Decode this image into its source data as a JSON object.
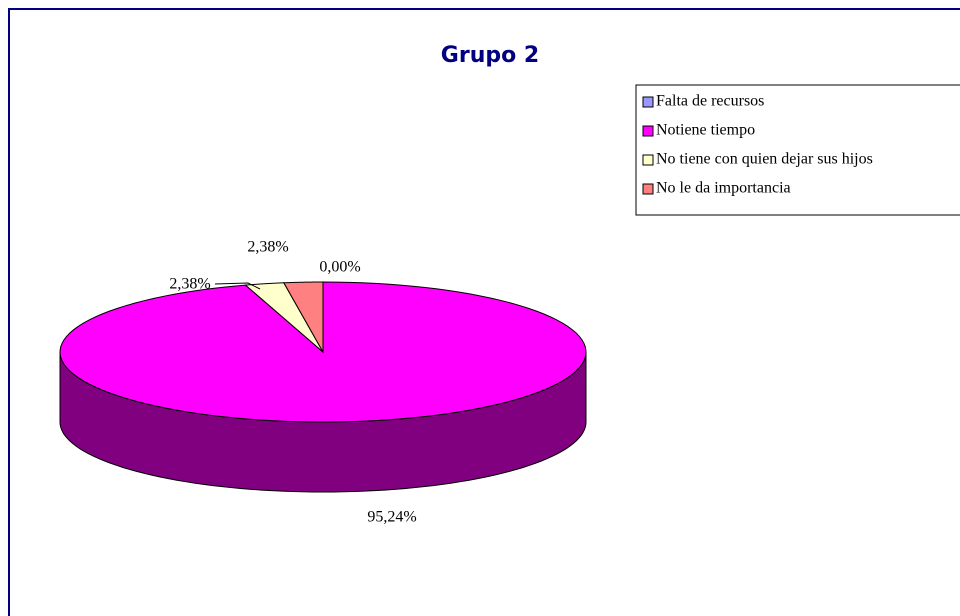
{
  "chart_data": {
    "type": "pie",
    "title": "Grupo 2",
    "categories": [
      "Falta de recursos",
      "Notiene tiempo",
      "No tiene con quien dejar sus hijos",
      "No le da importancia"
    ],
    "values": [
      0,
      95.24,
      2.38,
      2.38
    ],
    "value_labels": [
      "0,00%",
      "95,24%",
      "2,38%",
      "2,38%"
    ],
    "colors": [
      "#9999ff",
      "#ff00ff",
      "#ffffcc",
      "#ff8080"
    ],
    "legend": "right"
  }
}
